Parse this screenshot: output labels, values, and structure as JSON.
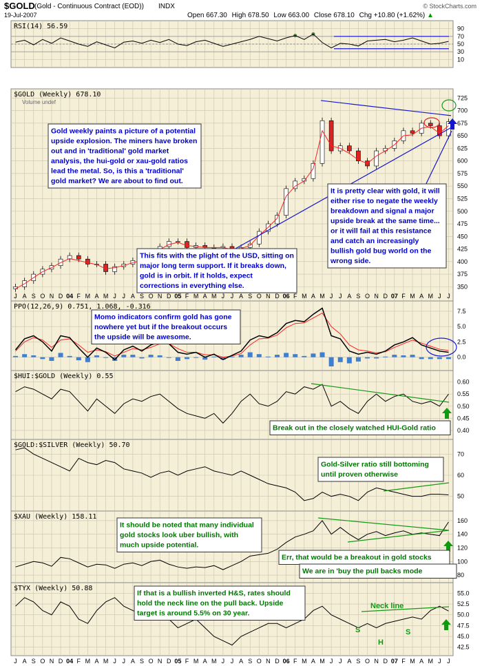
{
  "header": {
    "ticker": "$GOLD",
    "name": "(Gold - Continuous Contract (EOD))",
    "exchange": "INDX",
    "date": "19-Jul-2007",
    "open_label": "Open",
    "open": "667.30",
    "high_label": "High",
    "high": "678.50",
    "low_label": "Low",
    "low": "663.00",
    "close_label": "Close",
    "close": "678.10",
    "chg_label": "Chg",
    "chg": "+10.80 (+1.62%)",
    "arrow": "▲",
    "watermark": "© StockCharts.com"
  },
  "colors": {
    "panel_bg": "#f5efd8",
    "grid": "#c9c3ad",
    "price": "#000000",
    "ma": "#ff2020",
    "hist": "#3f7fd0",
    "trend_blue": "#1515d0",
    "trend_green": "#119911",
    "note_bg": "#ffffff",
    "note_blue_text": "#0000cc",
    "note_green_text": "#007700"
  },
  "chart_data": {
    "type": "line",
    "x_axis_months": [
      "J",
      "A",
      "S",
      "O",
      "N",
      "D",
      "04",
      "F",
      "M",
      "A",
      "M",
      "J",
      "J",
      "A",
      "S",
      "O",
      "N",
      "D",
      "05",
      "F",
      "M",
      "A",
      "M",
      "J",
      "J",
      "A",
      "S",
      "O",
      "N",
      "D",
      "06",
      "F",
      "M",
      "A",
      "M",
      "J",
      "J",
      "A",
      "S",
      "O",
      "N",
      "D",
      "07",
      "F",
      "M",
      "A",
      "M",
      "J",
      "J"
    ],
    "x_axis_bold": [
      "04",
      "05",
      "06",
      "07"
    ],
    "panels": [
      {
        "id": "rsi",
        "title": "RSI(14) 56.59",
        "yticks": [
          10,
          30,
          50,
          70,
          90
        ],
        "ylim": [
          0,
          100
        ],
        "series": [
          {
            "values": [
              55,
              60,
              48,
              62,
              52,
              66,
              58,
              50,
              44,
              56,
              48,
              40,
              55,
              58,
              52,
              60,
              54,
              62,
              50,
              46,
              56,
              60,
              52,
              44,
              50,
              56,
              62,
              70,
              64,
              58,
              66,
              72,
              62,
              76,
              54,
              40,
              52,
              50,
              45,
              58,
              60,
              62,
              56,
              60,
              66,
              58,
              50,
              52,
              57
            ]
          }
        ],
        "levels": [
          30,
          50,
          70
        ]
      },
      {
        "id": "gold",
        "title": "$GOLD (Weekly) 678.10",
        "subtitle": "Volume undef",
        "yticks": [
          350,
          375,
          400,
          425,
          450,
          475,
          500,
          525,
          550,
          575,
          600,
          625,
          650,
          675,
          700,
          725
        ],
        "ylim": [
          330,
          735
        ],
        "series": [
          {
            "type": "candlestick",
            "values": [
              350,
              362,
              375,
              385,
              392,
              405,
              412,
              405,
              395,
              395,
              380,
              390,
              395,
              402,
              405,
              418,
              430,
              440,
              440,
              428,
              432,
              428,
              428,
              430,
              422,
              428,
              435,
              460,
              475,
              492,
              545,
              560,
              565,
              595,
              680,
              620,
              630,
              620,
              600,
              590,
              620,
              625,
              640,
              660,
              655,
              675,
              670,
              650,
              678
            ]
          },
          {
            "type": "ma",
            "values": [
              346,
              356,
              368,
              380,
              388,
              398,
              406,
              402,
              398,
              394,
              386,
              388,
              392,
              398,
              402,
              412,
              424,
              434,
              438,
              432,
              430,
              428,
              428,
              428,
              424,
              426,
              432,
              452,
              468,
              486,
              530,
              550,
              560,
              585,
              660,
              630,
              625,
              615,
              602,
              595,
              610,
              620,
              632,
              650,
              652,
              665,
              668,
              655,
              670
            ]
          }
        ]
      },
      {
        "id": "ppo",
        "title": "PPO(12,26,9) 0.751, 1.068, -0.316",
        "yticks": [
          0.0,
          2.5,
          5.0,
          7.5
        ],
        "ylim": [
          -1.5,
          8.5
        ],
        "series": [
          {
            "name": "PPO",
            "values": [
              1.2,
              3.0,
              3.5,
              2.5,
              1.0,
              3.5,
              3.2,
              1.5,
              0.0,
              1.5,
              0.8,
              -0.4,
              1.2,
              1.8,
              1.0,
              2.0,
              2.5,
              2.2,
              0.8,
              0.5,
              0.8,
              0.0,
              0.5,
              -0.4,
              0.3,
              1.0,
              2.8,
              3.5,
              3.2,
              4.0,
              5.5,
              6.0,
              5.8,
              7.0,
              8.0,
              3.5,
              3.0,
              1.0,
              0.5,
              0.8,
              0.5,
              1.0,
              2.0,
              2.5,
              3.2,
              2.0,
              1.5,
              1.0,
              0.8
            ]
          },
          {
            "name": "Signal",
            "values": [
              1.0,
              2.5,
              3.2,
              2.8,
              1.6,
              2.8,
              3.0,
              2.0,
              0.8,
              1.2,
              0.9,
              0.2,
              0.8,
              1.4,
              1.2,
              1.6,
              2.2,
              2.2,
              1.4,
              0.8,
              0.8,
              0.4,
              0.4,
              0.0,
              0.2,
              0.6,
              2.0,
              3.0,
              3.1,
              3.6,
              4.8,
              5.5,
              5.6,
              6.4,
              7.2,
              5.0,
              3.8,
              2.0,
              1.2,
              1.0,
              0.7,
              0.9,
              1.6,
              2.2,
              2.8,
              2.3,
              1.8,
              1.3,
              1.1
            ]
          },
          {
            "name": "Histogram",
            "values": [
              0.2,
              0.5,
              0.3,
              -0.3,
              -0.6,
              0.7,
              0.2,
              -0.5,
              -0.8,
              0.3,
              -0.1,
              -0.6,
              0.4,
              0.4,
              -0.2,
              0.4,
              0.3,
              0.0,
              -0.6,
              -0.3,
              0.0,
              -0.4,
              0.1,
              -0.4,
              0.1,
              0.4,
              0.8,
              0.5,
              0.1,
              0.4,
              0.7,
              0.5,
              0.2,
              0.6,
              0.8,
              -1.5,
              -0.8,
              -1.0,
              -0.7,
              -0.2,
              -0.2,
              0.1,
              0.4,
              0.3,
              0.4,
              -0.3,
              -0.3,
              -0.3,
              -0.3
            ]
          }
        ]
      },
      {
        "id": "hui",
        "title": "$HUI:$GOLD (Weekly) 0.55",
        "yticks": [
          0.4,
          0.45,
          0.5,
          0.55,
          0.6
        ],
        "ylim": [
          0.38,
          0.63
        ],
        "series": [
          {
            "values": [
              0.56,
              0.58,
              0.57,
              0.55,
              0.53,
              0.57,
              0.56,
              0.52,
              0.48,
              0.53,
              0.5,
              0.47,
              0.51,
              0.53,
              0.52,
              0.54,
              0.55,
              0.52,
              0.49,
              0.47,
              0.46,
              0.45,
              0.47,
              0.43,
              0.47,
              0.52,
              0.55,
              0.51,
              0.5,
              0.52,
              0.56,
              0.55,
              0.58,
              0.57,
              0.59,
              0.5,
              0.52,
              0.49,
              0.47,
              0.52,
              0.55,
              0.52,
              0.54,
              0.55,
              0.52,
              0.51,
              0.52,
              0.5,
              0.55
            ]
          }
        ]
      },
      {
        "id": "gold_silver",
        "title": "$GOLD:$SILVER (Weekly) 50.70",
        "yticks": [
          50,
          60,
          70
        ],
        "ylim": [
          45,
          75
        ],
        "series": [
          {
            "values": [
              72,
              73,
              70,
              68,
              66,
              64,
              62,
              68,
              66,
              65,
              67,
              66,
              63,
              62,
              61,
              59,
              61,
              62,
              60,
              62,
              63,
              64,
              62,
              61,
              60,
              62,
              60,
              58,
              56,
              55,
              54,
              52,
              48,
              49,
              52,
              50,
              51,
              50,
              48,
              52,
              54,
              53,
              52,
              51,
              50,
              50,
              51,
              51,
              50.7
            ]
          }
        ]
      },
      {
        "id": "xau",
        "title": "$XAU (Weekly) 158.11",
        "yticks": [
          80,
          100,
          120,
          140,
          160
        ],
        "ylim": [
          75,
          168
        ],
        "series": [
          {
            "values": [
              92,
              96,
              100,
              98,
              93,
              106,
              104,
              98,
              92,
              96,
              95,
              90,
              96,
              98,
              94,
              100,
              102,
              96,
              92,
              90,
              92,
              91,
              94,
              88,
              94,
              100,
              108,
              110,
              112,
              118,
              128,
              136,
              140,
              145,
              160,
              140,
              150,
              140,
              132,
              140,
              144,
              138,
              142,
              145,
              140,
              142,
              140,
              138,
              158
            ]
          }
        ]
      },
      {
        "id": "tyx",
        "title": "$TYX (Weekly) 50.88",
        "yticks": [
          42.5,
          45.0,
          47.5,
          50.0,
          52.5,
          55.0
        ],
        "ylim": [
          41.5,
          56.5
        ],
        "series": [
          {
            "values": [
              52.0,
              54.0,
              53.0,
              51.0,
              50.0,
              53.0,
              52.0,
              49.0,
              48.0,
              51.0,
              53.0,
              54.0,
              52.0,
              51.0,
              50.0,
              50.0,
              51.0,
              49.0,
              47.0,
              48.0,
              49.0,
              47.0,
              45.0,
              44.0,
              43.0,
              45.0,
              46.0,
              47.0,
              48.0,
              48.0,
              47.0,
              48.0,
              49.0,
              51.0,
              52.0,
              50.0,
              49.0,
              48.0,
              47.0,
              48.0,
              47.0,
              48.0,
              48.5,
              49.0,
              49.5,
              49.0,
              51.0,
              52.0,
              50.88
            ]
          }
        ]
      }
    ]
  },
  "annotations": {
    "gold_note1": "Gold weekly paints a picture of a potential upside explosion.  The miners have broken out and in 'traditional' gold market analysis, the hui-gold or xau-gold ratios lead the metal.  So, is this a 'traditional' gold market?  We are about to find out.",
    "gold_note2": "It is pretty clear with gold, it will either rise to negate the weekly breakdown and signal a major upside break at the same time... or it will fail at this resistance and catch an increasingly bullish gold bug world on the wrong side.",
    "gold_note3": "This fits with the plight of the USD, sitting on major long term support.  If it breaks down, gold is in orbit.  If it holds, expect corrections in everything else.",
    "ppo_note": "Momo indicators confirm gold has gone nowhere yet but if the breakout occurs the upside will be awesome.",
    "hui_note": "Break out in the closely watched HUI-Gold ratio",
    "gs_note": "Gold-Silver ratio still bottoming until proven otherwise",
    "xau_note1": "It should be noted that many individual gold stocks look uber bullish, with much upside potential.",
    "xau_note2": "Err, that would be a breakout in gold stocks",
    "xau_note3": "We are in 'buy the pull backs mode",
    "tyx_note": "If that is a bullish inverted H&S, rates should hold the neck line on the pull back.  Upside target is around 5.5% on 30 year.",
    "neck_line": "Neck line",
    "s_left": "S",
    "h_mid": "H",
    "s_right": "S"
  }
}
